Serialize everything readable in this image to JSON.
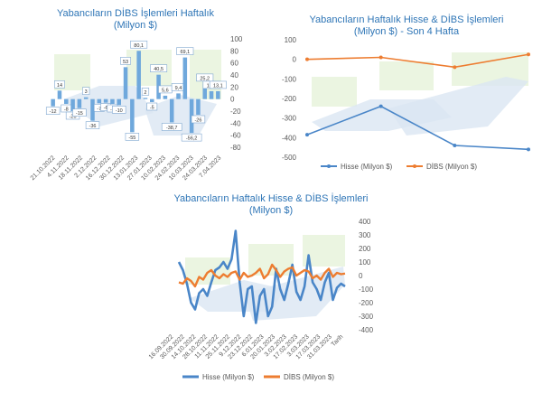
{
  "colors": {
    "title": "#2e75b6",
    "hisse": "#4a86c8",
    "dibs": "#ed7d31",
    "bar": "#6fa8dc",
    "axis_text": "#595959",
    "watermark_green": "#e6f2d9",
    "watermark_blue": "#dbe6f3"
  },
  "chart_data": [
    {
      "id": "weekly_bar",
      "type": "bar",
      "title": "Yabancıların  DİBS İşlemleri Haftalık\n(Milyon $)",
      "ylim": [
        -80,
        100
      ],
      "yticks": [
        -80,
        -60,
        -40,
        -20,
        0,
        20,
        40,
        60,
        80,
        100
      ],
      "x_tick_labels": [
        "21.10.2022",
        "4.11.2022",
        "18.11.2022",
        "2.12.2022",
        "16.12.2022",
        "30.12.2022",
        "13.01.2023",
        "27.01.2023",
        "10.02.2023",
        "24.02.2023",
        "10.03.2023",
        "24.03.2023",
        "7.04.2023"
      ],
      "values": [
        -12,
        14,
        -8,
        -20,
        -15,
        3,
        -36,
        -7,
        -6,
        -8,
        -10,
        53,
        -55,
        80.1,
        2,
        -5,
        40.5,
        5.6,
        -38.7,
        9.4,
        69.1,
        -56.2,
        -26,
        25.2,
        13.1,
        13.1
      ],
      "value_labels": [
        "-12",
        "14",
        "-8",
        "-20",
        "-15",
        "3",
        "-36",
        "-7",
        "-6",
        "-8",
        "-10",
        "53",
        "-55",
        "80,1",
        "2",
        "-5",
        "40,5",
        "5,6",
        "-38,7",
        "9,4",
        "69,1",
        "-56,2",
        "-26",
        "25,2",
        "13,1",
        "13,1"
      ]
    },
    {
      "id": "last4",
      "type": "line",
      "title": "Yabancıların  Haftalık Hisse & DİBS İşlemleri\n(Milyon $) - Son 4 Hafta",
      "ylim": [
        -500,
        100
      ],
      "yticks": [
        100,
        0,
        -100,
        -200,
        -300,
        -400,
        -500
      ],
      "series": [
        {
          "name": "Hisse (Milyon $)",
          "values": [
            -385,
            -240,
            -440,
            -460
          ]
        },
        {
          "name": "DİBS (Milyon $)",
          "values": [
            0,
            10,
            -40,
            25
          ]
        }
      ]
    },
    {
      "id": "weekly_lines",
      "type": "line",
      "title": "Yabancıların Haftalık Hisse & DİBS İşlemleri\n(Milyon $)",
      "ylim": [
        -400,
        400
      ],
      "yticks": [
        400,
        300,
        200,
        100,
        0,
        -100,
        -200,
        -300,
        -400
      ],
      "x_tick_labels": [
        "16.09.2022",
        "30.09.2022",
        "14.10.2022",
        "28.10.2022",
        "11.11.2022",
        "25.11.2022",
        "9.12.2022",
        "23.12.2022",
        "6.01.2023",
        "20.01.2023",
        "3.02.2023",
        "17.02.2023",
        "3.03.2023",
        "17.03.2023",
        "31.03.2023",
        "Tarih"
      ],
      "series": [
        {
          "name": "Hisse (Milyon $)",
          "values": [
            100,
            40,
            -60,
            -200,
            -250,
            -130,
            -100,
            -150,
            -50,
            40,
            60,
            100,
            50,
            120,
            330,
            -50,
            -300,
            -100,
            -80,
            -350,
            -150,
            -100,
            -300,
            -230,
            50,
            -100,
            -180,
            -60,
            80,
            -120,
            -180,
            -80,
            150,
            -50,
            -100,
            -180,
            -50,
            20,
            -180,
            -90,
            -60,
            -80
          ]
        },
        {
          "name": "DİBS (Milyon $)",
          "values": [
            -50,
            -60,
            -20,
            -40,
            -80,
            -10,
            -30,
            20,
            40,
            0,
            -20,
            10,
            -10,
            20,
            30,
            -30,
            20,
            -10,
            0,
            20,
            50,
            -20,
            10,
            80,
            40,
            -10,
            30,
            50,
            60,
            0,
            20,
            40,
            30,
            -20,
            0,
            -30,
            20,
            50,
            -10,
            20,
            10,
            15
          ]
        }
      ]
    }
  ]
}
